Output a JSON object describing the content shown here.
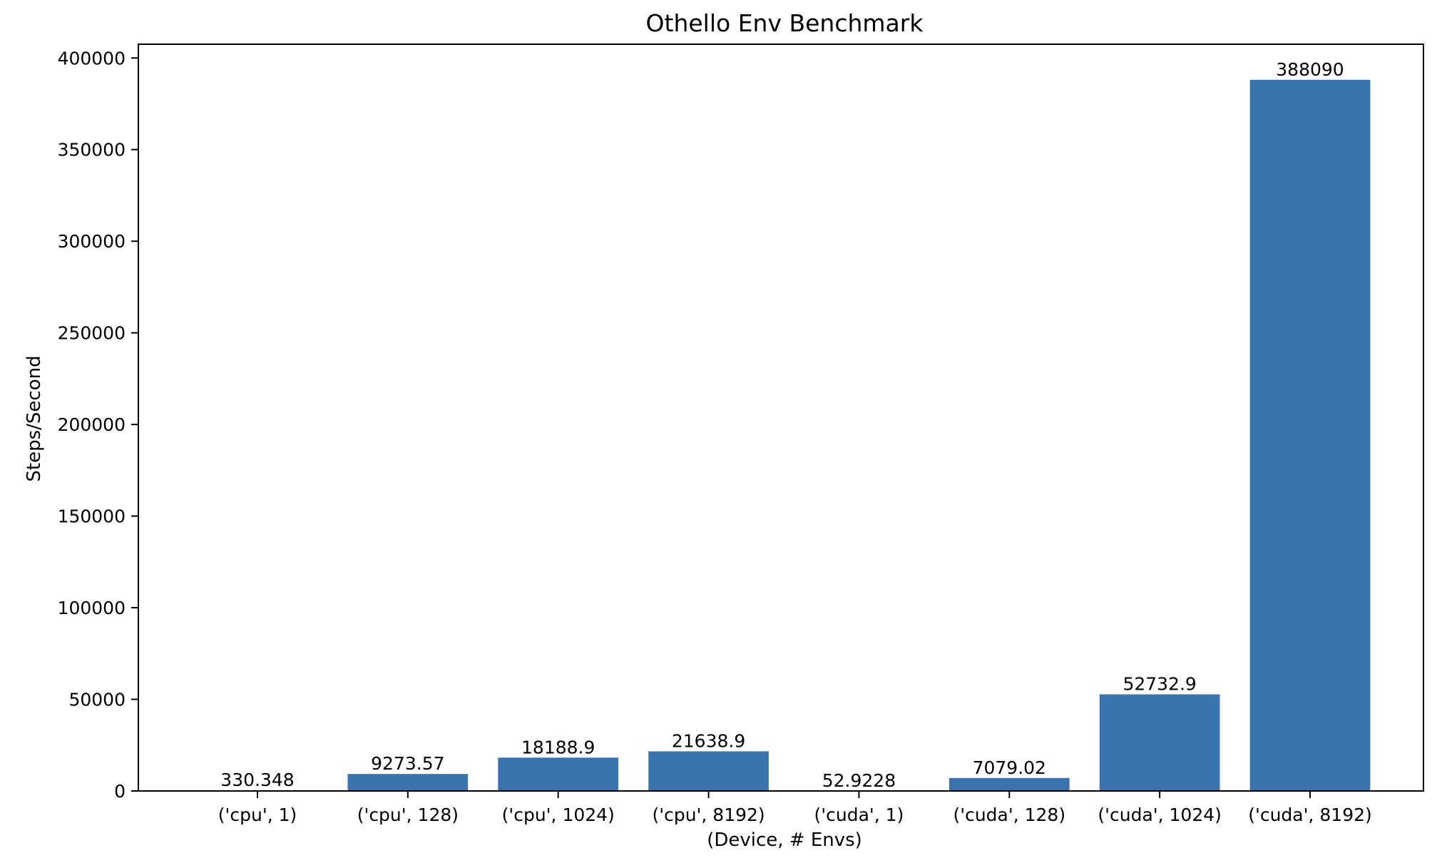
{
  "chart_data": {
    "type": "bar",
    "title": "Othello Env Benchmark",
    "xlabel": "(Device, # Envs)",
    "ylabel": "Steps/Second",
    "categories": [
      "('cpu', 1)",
      "('cpu', 128)",
      "('cpu', 1024)",
      "('cpu', 8192)",
      "('cuda', 1)",
      "('cuda', 128)",
      "('cuda', 1024)",
      "('cuda', 8192)"
    ],
    "values": [
      330.348,
      9273.57,
      18188.9,
      21638.9,
      52.9228,
      7079.02,
      52732.9,
      388090
    ],
    "value_labels": [
      "330.348",
      "9273.57",
      "18188.9",
      "21638.9",
      "52.9228",
      "7079.02",
      "52732.9",
      "388090"
    ],
    "yticks": [
      0,
      50000,
      100000,
      150000,
      200000,
      250000,
      300000,
      350000,
      400000
    ],
    "ytick_labels": [
      "0",
      "50000",
      "100000",
      "150000",
      "200000",
      "250000",
      "300000",
      "350000",
      "400000"
    ],
    "ylim": [
      0,
      407500
    ],
    "grid": false,
    "bar_color": "#3a73ae"
  }
}
